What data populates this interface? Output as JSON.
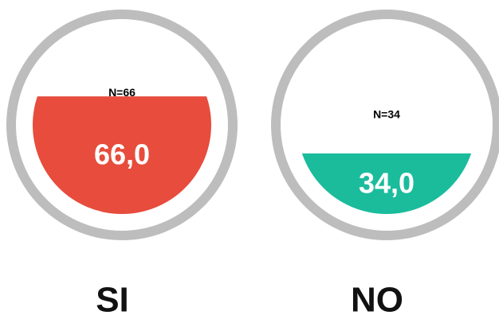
{
  "chart_data": {
    "type": "liquid-fill",
    "categories": [
      "SI",
      "NO"
    ],
    "values": [
      66,
      34
    ],
    "value_labels": [
      "66,0",
      "34,0"
    ],
    "annotations": [
      "N=66",
      "N=34"
    ],
    "colors": [
      "#e74c3c",
      "#1abc9c"
    ],
    "ylim": [
      0,
      100
    ]
  }
}
